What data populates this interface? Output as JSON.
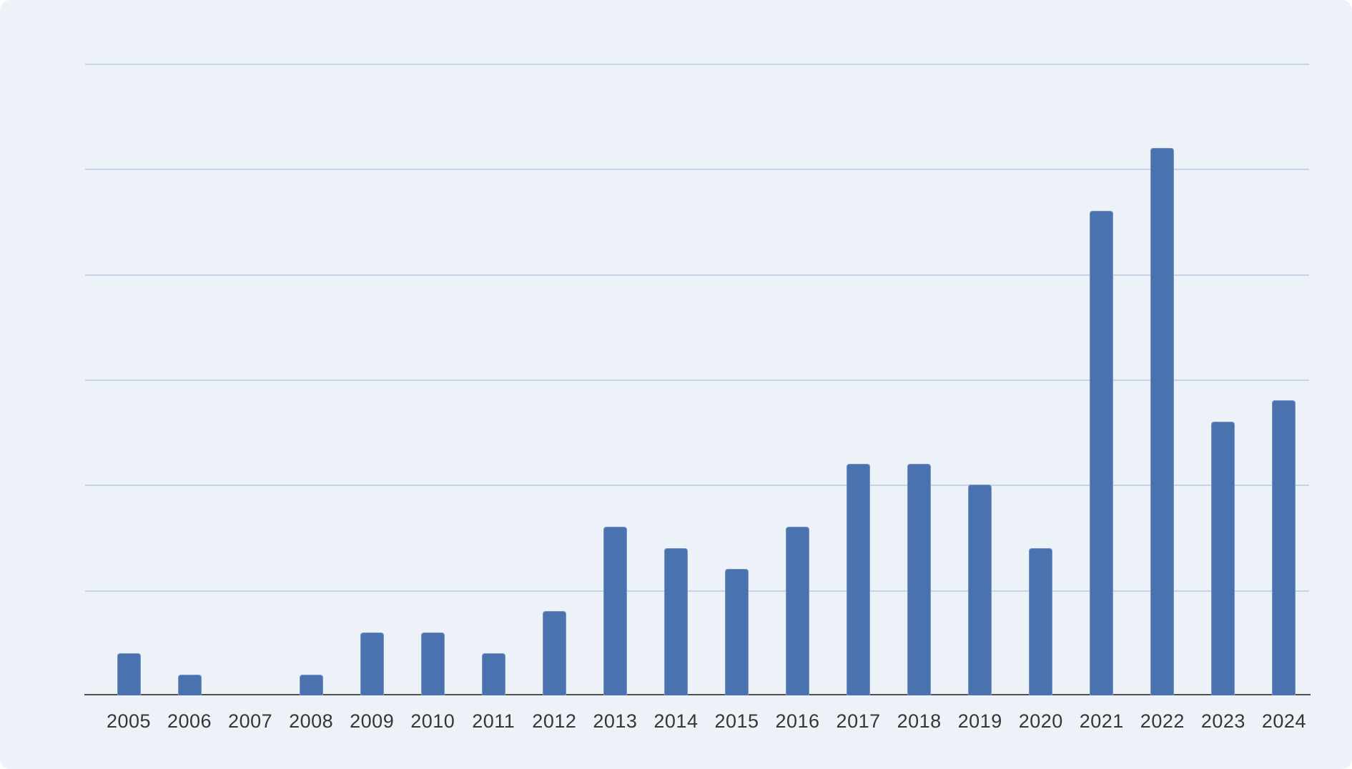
{
  "chart_data": {
    "type": "bar",
    "title": "",
    "xlabel": "",
    "ylabel": "",
    "categories": [
      "2005",
      "2006",
      "2007",
      "2008",
      "2009",
      "2010",
      "2011",
      "2012",
      "2013",
      "2014",
      "2015",
      "2016",
      "2017",
      "2018",
      "2019",
      "2020",
      "2021",
      "2022",
      "2023",
      "2024"
    ],
    "values": [
      2,
      1,
      0,
      1,
      3,
      3,
      2,
      4,
      8,
      7,
      6,
      8,
      11,
      11,
      10,
      7,
      23,
      26,
      13,
      14
    ],
    "ylim": [
      0,
      30
    ],
    "gridline_interval": 5,
    "grid": true,
    "y_axis_tick_labels_visible": false,
    "legend": "none",
    "colors": {
      "bar": "#4a72ae",
      "background": "#edf2f8",
      "gridline": "#c7d3e8",
      "axis_line": "#4f4f4f",
      "label_text": "#363636"
    }
  }
}
